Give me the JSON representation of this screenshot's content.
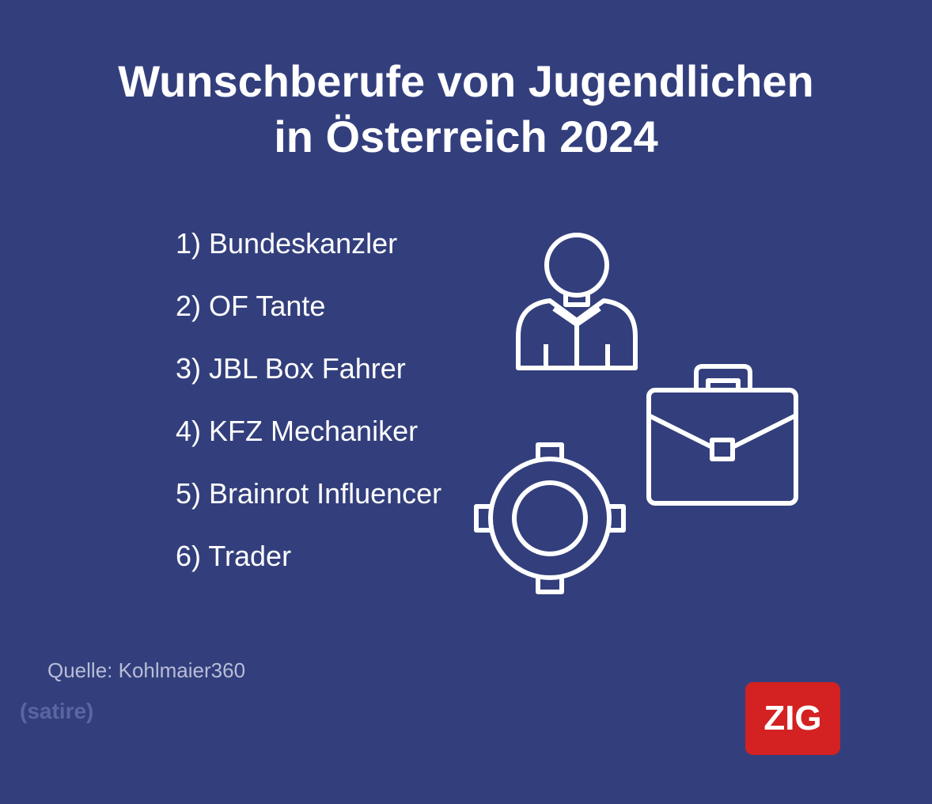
{
  "header": {
    "title_line1": "Wunschberufe von Jugendlichen",
    "title_line2": "in Österreich 2024"
  },
  "list": {
    "items": [
      "1) Bundeskanzler",
      "2) OF Tante",
      "3) JBL Box Fahrer",
      "4) KFZ Mechaniker",
      "5) Brainrot Influencer",
      "6) Trader"
    ]
  },
  "footer": {
    "source": "Quelle: Kohlmaier360",
    "note": "(satire)",
    "logo": "ZIG"
  }
}
